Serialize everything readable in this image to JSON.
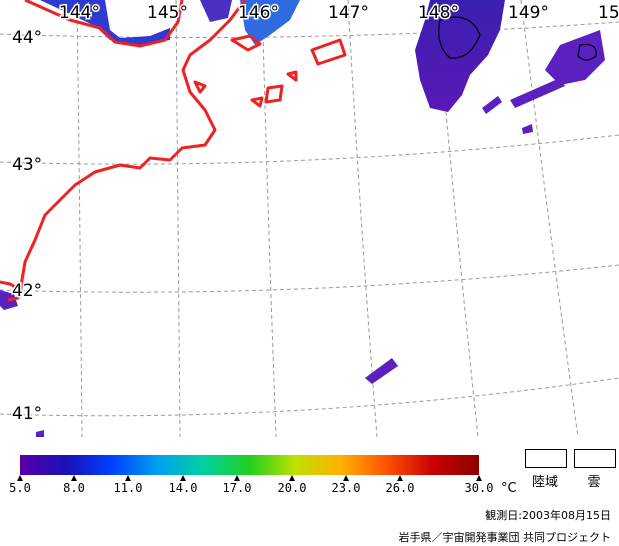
{
  "map": {
    "longitude_labels": [
      "144°",
      "145°",
      "146°",
      "147°",
      "148°",
      "149°",
      "15"
    ],
    "latitude_labels": [
      "44°",
      "43°",
      "42°",
      "41°"
    ],
    "colors": {
      "coast": "#ee2222",
      "grid": "#9a9a9a",
      "cloud": "#ffffff"
    }
  },
  "legend": {
    "ticks": [
      "5.0",
      "8.0",
      "11.0",
      "14.0",
      "17.0",
      "20.0",
      "23.0",
      "26.0",
      "30.0"
    ],
    "unit": "°C",
    "land_label": "陸域",
    "cloud_label": "雲",
    "colorbar_stops": [
      "#5a00a8",
      "#1a10b8",
      "#0040ff",
      "#00a0f0",
      "#00d0a0",
      "#20d020",
      "#c0e000",
      "#ffb000",
      "#ff5000",
      "#c80000",
      "#900000"
    ]
  },
  "footer": {
    "observation_date": "観測日:2003年08月15日",
    "credit": "岩手県／宇宙開発事業団 共同プロジェクト"
  }
}
